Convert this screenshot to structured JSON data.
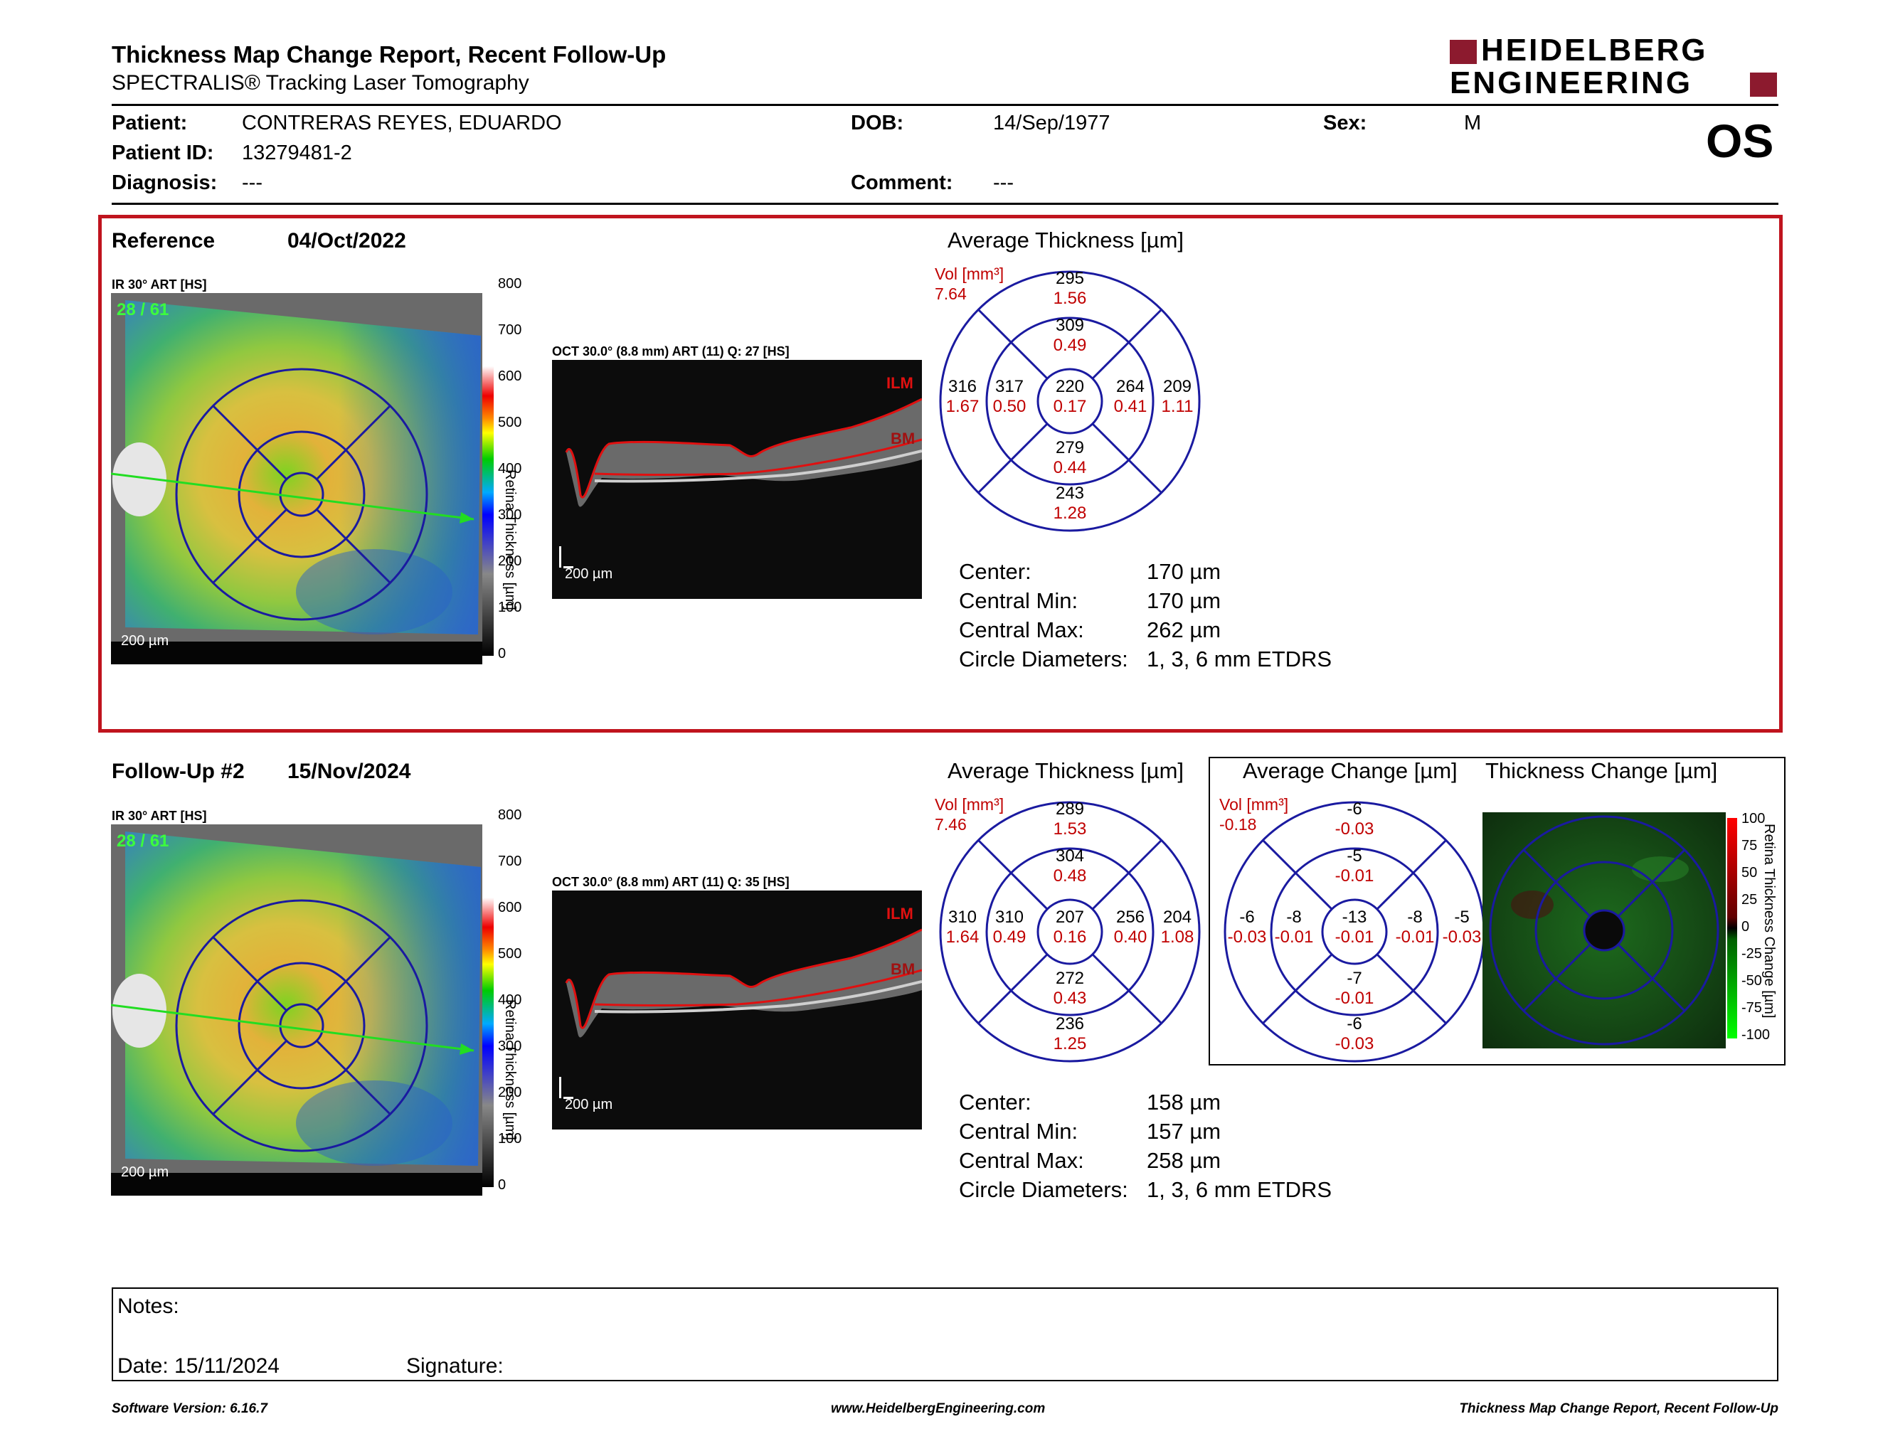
{
  "header": {
    "title": "Thickness Map Change Report, Recent Follow-Up",
    "subtitle": "SPECTRALIS® Tracking Laser Tomography",
    "logo_line1": "HEIDELBERG",
    "logo_line2": "ENGINEERING",
    "eye": "OS"
  },
  "patient": {
    "patient_label": "Patient:",
    "patient": "CONTRERAS REYES, EDUARDO",
    "dob_label": "DOB:",
    "dob": "14/Sep/1977",
    "sex_label": "Sex:",
    "sex": "M",
    "id_label": "Patient ID:",
    "id": "13279481-2",
    "diag_label": "Diagnosis:",
    "diagnosis": "---",
    "comment_label": "Comment:",
    "comment": "---"
  },
  "reference": {
    "label": "Reference",
    "date": "04/Oct/2022",
    "ir_label": "IR 30° ART [HS]",
    "ir_counter": "28 / 61",
    "scale": "200 µm",
    "oct_label": "OCT 30.0° (8.8 mm) ART (11) Q: 27 [HS]",
    "oct_scale": "200 µm",
    "ilm": "ILM",
    "bm": "BM",
    "colorbar_title": "Retina Thickness [µm]",
    "colorbar_ticks": [
      "800",
      "700",
      "600",
      "500",
      "400",
      "300",
      "200",
      "100",
      "0"
    ],
    "avg_title": "Average Thickness [µm]",
    "vol_label": "Vol [mm³]",
    "vol": "7.64",
    "sectors": {
      "outer_sup": {
        "t": "295",
        "v": "1.56"
      },
      "inner_sup": {
        "t": "309",
        "v": "0.49"
      },
      "outer_nas": {
        "t": "316",
        "v": "1.67"
      },
      "inner_nas": {
        "t": "317",
        "v": "0.50"
      },
      "center": {
        "t": "220",
        "v": "0.17"
      },
      "inner_tmp": {
        "t": "264",
        "v": "0.41"
      },
      "outer_tmp": {
        "t": "209",
        "v": "1.11"
      },
      "inner_inf": {
        "t": "279",
        "v": "0.44"
      },
      "outer_inf": {
        "t": "243",
        "v": "1.28"
      }
    },
    "stats": {
      "center_label": "Center:",
      "center": "170 µm",
      "min_label": "Central Min:",
      "min": "170 µm",
      "max_label": "Central Max:",
      "max": "262 µm",
      "circ_label": "Circle Diameters:",
      "circ": "1, 3, 6 mm ETDRS"
    }
  },
  "followup": {
    "label": "Follow-Up #2",
    "date": "15/Nov/2024",
    "ir_label": "IR 30° ART [HS]",
    "ir_counter": "28 / 61",
    "scale": "200 µm",
    "oct_label": "OCT 30.0° (8.8 mm) ART (11) Q: 35 [HS]",
    "oct_scale": "200 µm",
    "ilm": "ILM",
    "bm": "BM",
    "colorbar_title": "Retina Thickness [µm]",
    "colorbar_ticks": [
      "800",
      "700",
      "600",
      "500",
      "400",
      "300",
      "200",
      "100",
      "0"
    ],
    "avg_title": "Average Thickness [µm]",
    "vol_label": "Vol [mm³]",
    "vol": "7.46",
    "sectors": {
      "outer_sup": {
        "t": "289",
        "v": "1.53"
      },
      "inner_sup": {
        "t": "304",
        "v": "0.48"
      },
      "outer_nas": {
        "t": "310",
        "v": "1.64"
      },
      "inner_nas": {
        "t": "310",
        "v": "0.49"
      },
      "center": {
        "t": "207",
        "v": "0.16"
      },
      "inner_tmp": {
        "t": "256",
        "v": "0.40"
      },
      "outer_tmp": {
        "t": "204",
        "v": "1.08"
      },
      "inner_inf": {
        "t": "272",
        "v": "0.43"
      },
      "outer_inf": {
        "t": "236",
        "v": "1.25"
      }
    },
    "stats": {
      "center_label": "Center:",
      "center": "158 µm",
      "min_label": "Central Min:",
      "min": "157 µm",
      "max_label": "Central Max:",
      "max": "258 µm",
      "circ_label": "Circle Diameters:",
      "circ": "1, 3, 6 mm ETDRS"
    },
    "change_title": "Average Change [µm]",
    "change_vol_label": "Vol [mm³]",
    "change_vol": "-0.18",
    "change": {
      "outer_sup": {
        "t": "-6",
        "v": "-0.03"
      },
      "inner_sup": {
        "t": "-5",
        "v": "-0.01"
      },
      "outer_nas": {
        "t": "-6",
        "v": "-0.03"
      },
      "inner_nas": {
        "t": "-8",
        "v": "-0.01"
      },
      "center": {
        "t": "-13",
        "v": "-0.01"
      },
      "inner_tmp": {
        "t": "-8",
        "v": "-0.01"
      },
      "outer_tmp": {
        "t": "-5",
        "v": "-0.03"
      },
      "inner_inf": {
        "t": "-7",
        "v": "-0.01"
      },
      "outer_inf": {
        "t": "-6",
        "v": "-0.03"
      }
    },
    "thick_change_title": "Thickness Change [µm]",
    "thick_change_bar_title": "Retina Thickness Change [µm]",
    "thick_change_ticks": [
      "100",
      "75",
      "50",
      "25",
      "0",
      "-25",
      "-50",
      "-75",
      "-100"
    ]
  },
  "notes": {
    "notes_label": "Notes:",
    "date_label": "Date: 15/11/2024",
    "signature_label": "Signature:"
  },
  "footer": {
    "software": "Software Version: 6.16.7",
    "website": "www.HeidelbergEngineering.com",
    "report": "Thickness Map Change Report, Recent Follow-Up"
  },
  "colors": {
    "accent": "#c0141e",
    "logo": "#8c1a2e",
    "grid": "#1a1aa0",
    "value": "#c00000"
  }
}
